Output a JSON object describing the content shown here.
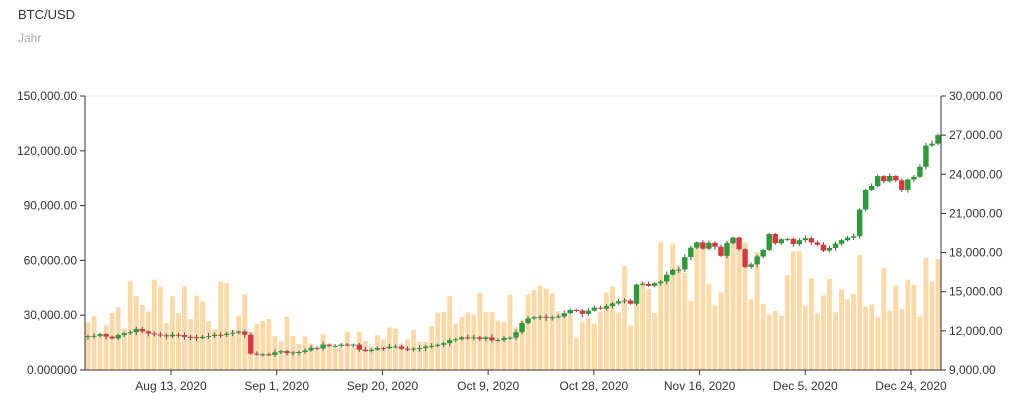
{
  "header": {
    "title": "BTC/USD",
    "subtitle": "Jahr"
  },
  "chart_data": {
    "type": "candlestick+bar",
    "title": "BTC/USD",
    "subtitle": "Jahr",
    "x_tick_labels": [
      "Aug 13, 2020",
      "Sep 1, 2020",
      "Sep 20, 2020",
      "Oct 9, 2020",
      "Oct 28, 2020",
      "Nov 16, 2020",
      "Dec 5, 2020",
      "Dec 24, 2020"
    ],
    "volume_axis": {
      "ylim": [
        0,
        150000
      ],
      "ticks": [
        "0.000000",
        "30,000.00",
        "60,000.00",
        "90,000.00",
        "120,000.00",
        "150,000.00"
      ]
    },
    "price_axis": {
      "ylim": [
        9000,
        30000
      ],
      "ticks": [
        "9,000.00",
        "12,000.00",
        "15,000.00",
        "18,000.00",
        "21,000.00",
        "24,000.00",
        "27,000.00",
        "30,000.00"
      ]
    },
    "colors": {
      "volume": "#fdd9a8",
      "up": "#2d9a3a",
      "down": "#d9363e",
      "wick": "#555555",
      "axis": "#333333",
      "grid": "#eeeeee"
    },
    "closes": [
      11590,
      11620,
      11750,
      11560,
      11420,
      11680,
      11820,
      11900,
      12150,
      11960,
      11800,
      11720,
      11660,
      11580,
      11700,
      11680,
      11540,
      11520,
      11440,
      11540,
      11600,
      11700,
      11680,
      11780,
      11850,
      11950,
      11700,
      10250,
      10200,
      10200,
      10150,
      10350,
      10450,
      10300,
      10350,
      10380,
      10500,
      10700,
      10650,
      10950,
      10850,
      10850,
      10950,
      10890,
      10950,
      10550,
      10450,
      10550,
      10680,
      10670,
      10780,
      10800,
      10630,
      10600,
      10640,
      10680,
      10800,
      10850,
      10940,
      11060,
      11290,
      11360,
      11500,
      11480,
      11500,
      11380,
      11500,
      11280,
      11300,
      11450,
      11480,
      11900,
      12600,
      12950,
      13050,
      13080,
      13000,
      13040,
      13100,
      13350,
      13600,
      13560,
      13300,
      13550,
      13780,
      13700,
      13900,
      14100,
      14270,
      14330,
      14080,
      15550,
      15600,
      15450,
      15650,
      15780,
      16300,
      16680,
      16700,
      17650,
      18380,
      18780,
      18300,
      18750,
      18450,
      17750,
      18720,
      19150,
      18260,
      16900,
      17100,
      17700,
      18200,
      19420,
      18710,
      19020,
      19050,
      18650,
      18950,
      19100,
      18780,
      18600,
      18150,
      18350,
      18680,
      18950,
      19140,
      19250,
      21300,
      22800,
      23100,
      23860,
      23470,
      23870,
      23540,
      22800,
      23600,
      23800,
      24580,
      26200,
      26350,
      27000
    ]
  }
}
